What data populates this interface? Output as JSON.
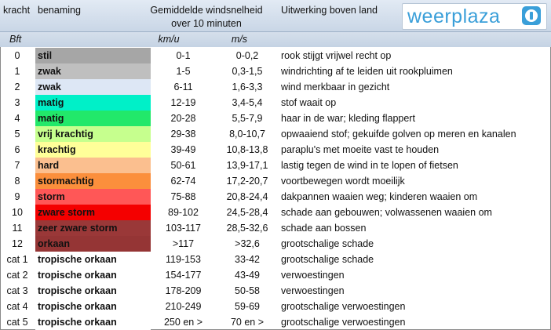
{
  "header": {
    "kracht": "kracht",
    "benaming": "benaming",
    "snelheid_line1": "Gemiddelde windsnelheid",
    "snelheid_line2": "over 10 minuten",
    "uitwerking": "Uitwerking boven land"
  },
  "logo": {
    "text": "weerplaza",
    "icon": "info-icon",
    "color": "#3a9fd9"
  },
  "units": {
    "bft": "Bft",
    "kmu": "km/u",
    "ms": "m/s"
  },
  "rows": [
    {
      "bft": "0",
      "name": "stil",
      "kmu": "0-1",
      "ms": "0-0,2",
      "effect": "rook stijgt vrijwel recht op",
      "color": "#a6a6a6"
    },
    {
      "bft": "1",
      "name": "zwak",
      "kmu": "1-5",
      "ms": "0,3-1,5",
      "effect": "windrichting af te leiden uit rookpluimen",
      "color": "#bfbfbf"
    },
    {
      "bft": "2",
      "name": "zwak",
      "kmu": "6-11",
      "ms": "1,6-3,3",
      "effect": "wind merkbaar in gezicht",
      "color": "#dde7f5"
    },
    {
      "bft": "3",
      "name": "matig",
      "kmu": "12-19",
      "ms": "3,4-5,4",
      "effect": "stof waait op",
      "color": "#00f0c8"
    },
    {
      "bft": "4",
      "name": "matig",
      "kmu": "20-28",
      "ms": "5,5-7,9",
      "effect": "haar in de war; kleding flappert",
      "color": "#22e86a"
    },
    {
      "bft": "5",
      "name": "vrij krachtig",
      "kmu": "29-38",
      "ms": "8,0-10,7",
      "effect": "opwaaiend stof; gekuifde golven op meren en kanalen",
      "color": "#c6ff8e"
    },
    {
      "bft": "6",
      "name": "krachtig",
      "kmu": "39-49",
      "ms": "10,8-13,8",
      "effect": "paraplu's met moeite vast te houden",
      "color": "#ffff99"
    },
    {
      "bft": "7",
      "name": "hard",
      "kmu": "50-61",
      "ms": "13,9-17,1",
      "effect": "lastig tegen de wind in te lopen of fietsen",
      "color": "#fbbf8f"
    },
    {
      "bft": "8",
      "name": "stormachtig",
      "kmu": "62-74",
      "ms": "17,2-20,7",
      "effect": "voortbewegen wordt moeilijk",
      "color": "#fb8f3c"
    },
    {
      "bft": "9",
      "name": "storm",
      "kmu": "75-88",
      "ms": "20,8-24,4",
      "effect": "dakpannen waaien weg; kinderen waaien om",
      "color": "#ff5757"
    },
    {
      "bft": "10",
      "name": "zware storm",
      "kmu": "89-102",
      "ms": "24,5-28,4",
      "effect": "schade aan gebouwen; volwassenen waaien om",
      "color": "#f40000"
    },
    {
      "bft": "11",
      "name": "zeer zware storm",
      "kmu": "103-117",
      "ms": "28,5-32,6",
      "effect": "schade aan bossen",
      "color": "#9a3838"
    },
    {
      "bft": "12",
      "name": "orkaan",
      "kmu": ">117",
      "ms": ">32,6",
      "effect": "grootschalige schade",
      "color": "#953535"
    },
    {
      "bft": "cat 1",
      "name": "tropische orkaan",
      "kmu": "119-153",
      "ms": "33-42",
      "effect": "grootschalige schade",
      "color": "#ffffff"
    },
    {
      "bft": "cat 2",
      "name": "tropische orkaan",
      "kmu": "154-177",
      "ms": "43-49",
      "effect": "verwoestingen",
      "color": "#ffffff"
    },
    {
      "bft": "cat 3",
      "name": "tropische orkaan",
      "kmu": "178-209",
      "ms": "50-58",
      "effect": "verwoestingen",
      "color": "#ffffff"
    },
    {
      "bft": "cat 4",
      "name": "tropische orkaan",
      "kmu": "210-249",
      "ms": "59-69",
      "effect": "grootschalige verwoestingen",
      "color": "#ffffff"
    },
    {
      "bft": "cat 5",
      "name": "tropische orkaan",
      "kmu": "250 en >",
      "ms": "70 en >",
      "effect": "grootschalige verwoestingen",
      "color": "#ffffff"
    }
  ]
}
